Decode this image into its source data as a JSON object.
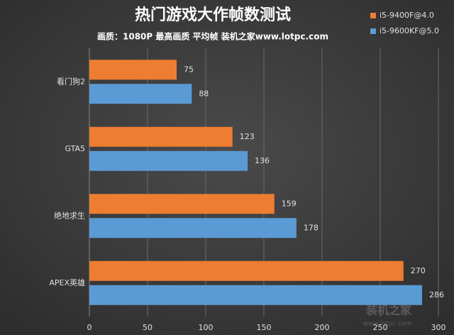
{
  "chart_data": {
    "type": "hbar",
    "title": "热门游戏大作帧数测试",
    "subtitle": "画质：1080P 最高画质 平均帧 装机之家www.lotpc.com",
    "categories": [
      "看门狗2",
      "GTA5",
      "绝地求生",
      "APEX英雄"
    ],
    "series": [
      {
        "name": "i5-9400F@4.0",
        "color": "#ed7d31",
        "values": [
          75,
          123,
          159,
          270
        ]
      },
      {
        "name": "i5-9600KF@5.0",
        "color": "#5b9bd5",
        "values": [
          88,
          136,
          178,
          286
        ]
      }
    ],
    "xlim": [
      0,
      300
    ],
    "xticks": [
      0,
      50,
      100,
      150,
      200,
      250,
      300
    ],
    "grid": true,
    "legend": "top-right",
    "watermark": [
      "装机之家",
      "www.lotpc.com"
    ]
  }
}
